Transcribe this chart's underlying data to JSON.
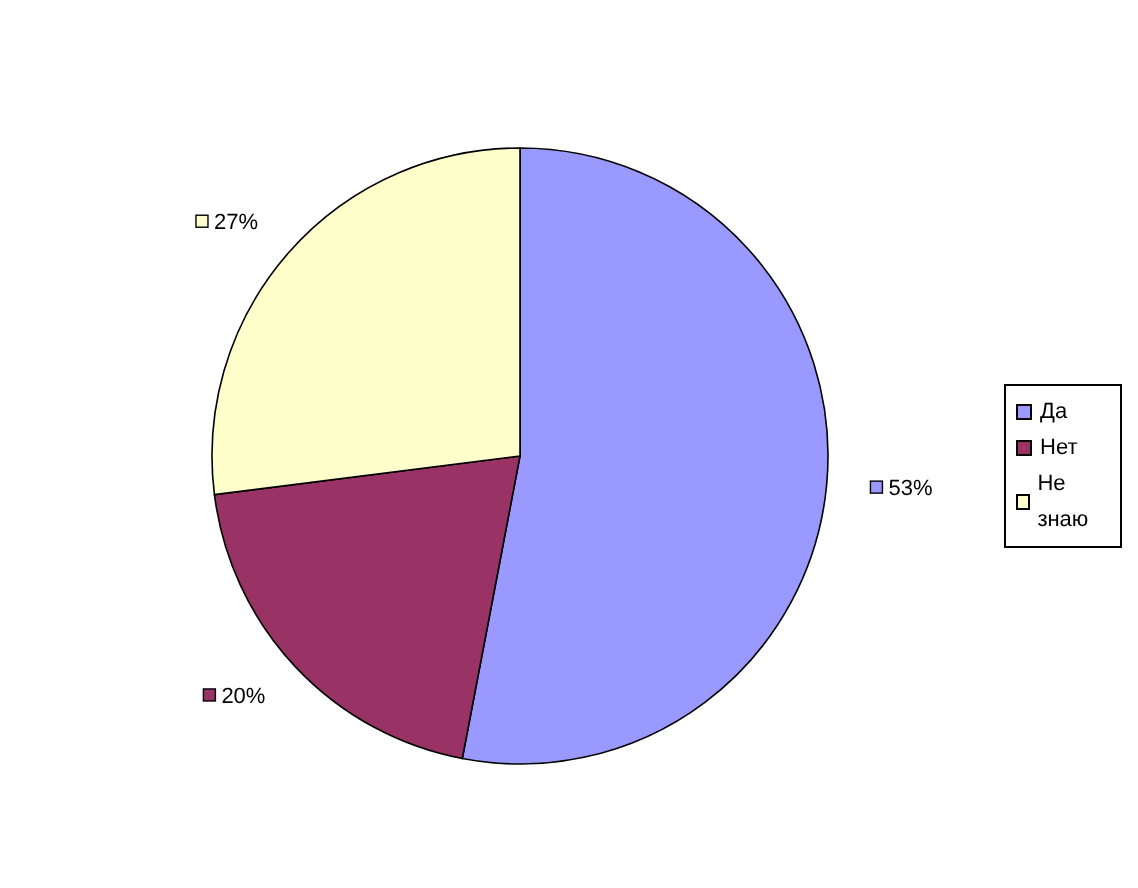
{
  "chart_data": {
    "type": "pie",
    "categories": [
      "Да",
      "Нет",
      "Не знаю"
    ],
    "values": [
      53,
      20,
      27
    ],
    "colors": [
      "#9999ff",
      "#993366",
      "#ffffcc"
    ],
    "value_labels": [
      "53%",
      "20%",
      "27%"
    ],
    "legend": "right"
  }
}
